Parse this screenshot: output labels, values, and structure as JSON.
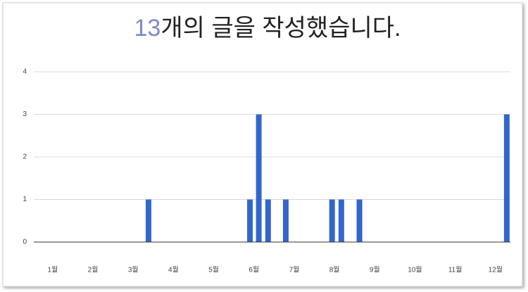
{
  "chart_data": {
    "type": "bar",
    "title": [
      "13",
      "개의 글을 작성했습니다."
    ],
    "x": [
      3.38,
      5.9,
      6.12,
      6.35,
      6.79,
      7.94,
      8.17,
      8.62,
      12.28
    ],
    "values": [
      1,
      1,
      3,
      1,
      1,
      1,
      1,
      1,
      3
    ],
    "color": "#3366cc",
    "xlim": [
      0.53,
      12.37
    ],
    "xticks": [
      {
        "value": 1,
        "label": "1월"
      },
      {
        "value": 2,
        "label": "2월"
      },
      {
        "value": 3,
        "label": "3월"
      },
      {
        "value": 4,
        "label": "4월"
      },
      {
        "value": 5,
        "label": "5월"
      },
      {
        "value": 6,
        "label": "6월"
      },
      {
        "value": 7,
        "label": "7월"
      },
      {
        "value": 8,
        "label": "8월"
      },
      {
        "value": 9,
        "label": "9월"
      },
      {
        "value": 10,
        "label": "10월"
      },
      {
        "value": 11,
        "label": "11월"
      },
      {
        "value": 12,
        "label": "12월"
      }
    ],
    "ylim": [
      0,
      4
    ],
    "yticks": [
      0,
      1,
      2,
      3,
      4
    ],
    "grid": true
  }
}
